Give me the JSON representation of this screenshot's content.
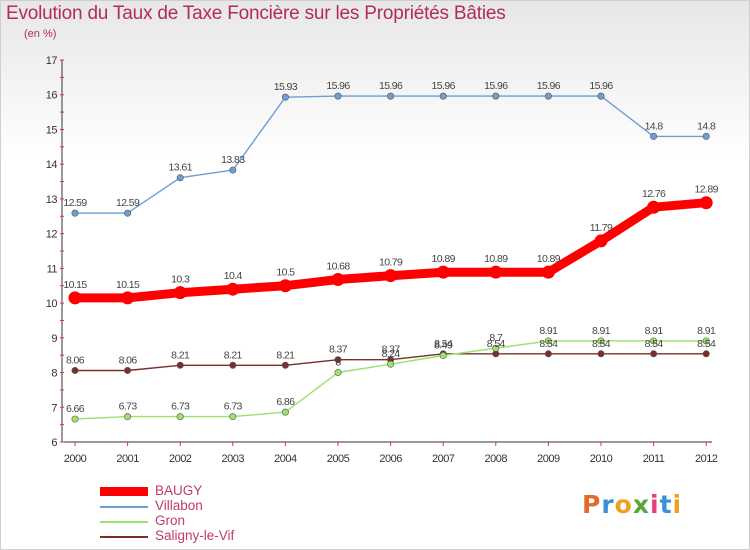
{
  "chart_data": {
    "type": "line",
    "title": "Evolution du Taux de Taxe Foncière sur les Propriétés Bâties",
    "subtitle": "(en %)",
    "xlabel": "",
    "ylabel": "(en %)",
    "x": [
      "2000",
      "2001",
      "2002",
      "2003",
      "2004",
      "2005",
      "2006",
      "2007",
      "2008",
      "2009",
      "2010",
      "2011",
      "2012"
    ],
    "yticks": [
      "6",
      "7",
      "8",
      "9",
      "10",
      "11",
      "12",
      "13",
      "14",
      "15",
      "16",
      "17"
    ],
    "ylim": [
      6,
      17
    ],
    "grid": false,
    "legend_position": "bottom-left",
    "series": [
      {
        "name": "BAUGY",
        "color": "#ff0000",
        "values": [
          10.15,
          10.15,
          10.3,
          10.4,
          10.5,
          10.68,
          10.79,
          10.89,
          10.89,
          10.89,
          11.79,
          12.76,
          12.89
        ],
        "labels": [
          "10.15",
          "10.15",
          "10.3",
          "10.4",
          "10.5",
          "10.68",
          "10.79",
          "10.89",
          "10.89",
          "10.89",
          "11.79",
          "12.76",
          "12.89"
        ]
      },
      {
        "name": "Villabon",
        "color": "#6b9fd6",
        "values": [
          12.59,
          12.59,
          13.61,
          13.83,
          15.93,
          15.96,
          15.96,
          15.96,
          15.96,
          15.96,
          15.96,
          14.8,
          14.8
        ],
        "labels": [
          "12.59",
          "12.59",
          "13.61",
          "13.83",
          "15.93",
          "15.96",
          "15.96",
          "15.96",
          "15.96",
          "15.96",
          "15.96",
          "14.8",
          "14.8"
        ]
      },
      {
        "name": "Gron",
        "color": "#99e26b",
        "values": [
          6.66,
          6.73,
          6.73,
          6.73,
          6.86,
          8.0,
          8.24,
          8.49,
          8.7,
          8.91,
          8.91,
          8.91,
          8.91
        ],
        "labels": [
          "6.66",
          "6.73",
          "6.73",
          "6.73",
          "6.86",
          "8",
          "8.24",
          "8.49",
          "8.7",
          "8.91",
          "8.91",
          "8.91",
          "8.91"
        ]
      },
      {
        "name": "Saligny-le-Vif",
        "color": "#7a2e2e",
        "values": [
          8.06,
          8.06,
          8.21,
          8.21,
          8.21,
          8.37,
          8.37,
          8.54,
          8.54,
          8.54,
          8.54,
          8.54,
          8.54
        ],
        "labels": [
          "8.06",
          "8.06",
          "8.21",
          "8.21",
          "8.21",
          "8.37",
          "8.37",
          "8.54",
          "8.54",
          "8.54",
          "8.54",
          "8.54",
          "8.54"
        ]
      }
    ]
  },
  "logo": {
    "letters": [
      "P",
      "r",
      "o",
      "x",
      "i",
      "t",
      "i"
    ],
    "colors": [
      "#e46a2a",
      "#3d8fd9",
      "#f0a020",
      "#5aa63a",
      "#e83f7a",
      "#3d8fd9",
      "#f0a020"
    ]
  }
}
